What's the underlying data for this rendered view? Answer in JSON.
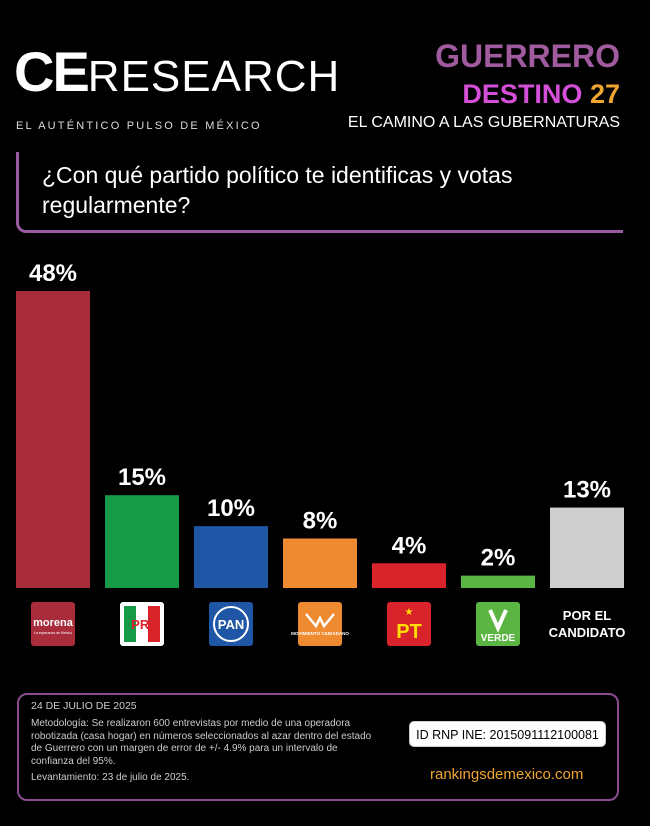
{
  "brand": {
    "logo_ce": "CE",
    "logo_research": "RESEARCH",
    "tagline": "EL AUTÉNTICO PULSO DE MÉXICO"
  },
  "header": {
    "state": "GUERRERO",
    "dest_word": "DESTINO",
    "dest_num": "27",
    "subtitle": "EL CAMINO A LAS GUBERNATURAS"
  },
  "question": "¿Con qué partido político te identificas y votas regularmente?",
  "footer": {
    "date": "24 DE JULIO DE 2025",
    "methodology": "Metodología: Se realizaron 600 entrevistas por medio de una operadora robotizada (casa hogar) en números seleccionados al azar dentro del estado de Guerrero con un margen de error de +/- 4.9% para un intervalo de confianza del 95%.",
    "levantamiento": "Levantamiento: 23 de julio de 2025.",
    "id_rnp": "ID RNP INE: 2015091112100081",
    "url": "rankingsdemexico.com"
  },
  "chart_data": {
    "type": "bar",
    "categories": [
      "morena",
      "PRI",
      "PAN",
      "MOVIMIENTO CIUDADANO",
      "PT",
      "VERDE",
      "POR EL CANDIDATO"
    ],
    "values": [
      48,
      15,
      10,
      8,
      4,
      2,
      13
    ],
    "value_labels": [
      "48%",
      "15%",
      "10%",
      "8%",
      "4%",
      "2%",
      "13%"
    ],
    "colors": [
      "#a82c3a",
      "#179a47",
      "#1f56a5",
      "#ee8a30",
      "#d8232a",
      "#5bb543",
      "#cfcfcf"
    ],
    "ylim": [
      0,
      48
    ],
    "logos": [
      {
        "text": "morena",
        "sub": "La esperanza de México",
        "bg": "#a82c3a",
        "fg": "#ffffff"
      },
      {
        "text": "PRI",
        "bg": "#ffffff",
        "fg": "#d8232a"
      },
      {
        "text": "PAN",
        "bg": "#1f56a5",
        "fg": "#ffffff"
      },
      {
        "text": "MOVIMIENTO CIUDADANO",
        "bg": "#ee8a30",
        "fg": "#ffffff"
      },
      {
        "text": "PT",
        "bg": "#d8232a",
        "fg": "#ffde00"
      },
      {
        "text": "VERDE",
        "bg": "#5bb543",
        "fg": "#ffffff"
      },
      {
        "text": "POR EL CANDIDATO",
        "bg": "",
        "fg": "#ffffff"
      }
    ]
  }
}
